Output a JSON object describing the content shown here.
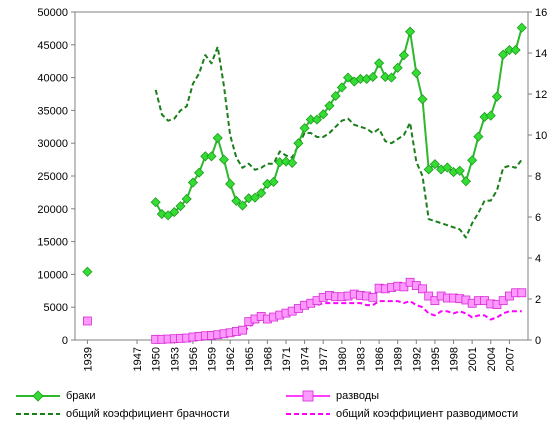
{
  "chart_data": {
    "type": "line",
    "x_ticks": [
      "1939",
      "1947",
      "1950",
      "1953",
      "1956",
      "1959",
      "1962",
      "1965",
      "1968",
      "1971",
      "1974",
      "1977",
      "1980",
      "1983",
      "1986",
      "1989",
      "1992",
      "1995",
      "1998",
      "2001",
      "2004",
      "2007"
    ],
    "y_left": {
      "min": 0,
      "max": 50000,
      "ticks": [
        "0",
        "5000",
        "10000",
        "15000",
        "20000",
        "25000",
        "30000",
        "35000",
        "40000",
        "45000",
        "50000"
      ]
    },
    "y_right": {
      "min": 0,
      "max": 16,
      "ticks": [
        "0",
        "2",
        "4",
        "6",
        "8",
        "10",
        "12",
        "14",
        "16"
      ]
    },
    "grid": false,
    "legend_position": "bottom",
    "series": [
      {
        "name": "браки",
        "axis": "left",
        "color": "#2db82d",
        "marker": "diamond",
        "style": "solid",
        "x": [
          1939,
          1950,
          1951,
          1952,
          1953,
          1954,
          1955,
          1956,
          1957,
          1958,
          1959,
          1960,
          1961,
          1962,
          1963,
          1964,
          1965,
          1966,
          1967,
          1968,
          1969,
          1970,
          1971,
          1972,
          1973,
          1974,
          1975,
          1976,
          1977,
          1978,
          1979,
          1980,
          1981,
          1982,
          1983,
          1984,
          1985,
          1986,
          1987,
          1988,
          1989,
          1990,
          1991,
          1992,
          1993,
          1994,
          1995,
          1996,
          1997,
          1998,
          1999,
          2000,
          2001,
          2002,
          2003,
          2004,
          2005,
          2006,
          2007,
          2008,
          2009
        ],
        "y": [
          10400,
          21000,
          19200,
          19000,
          19500,
          20400,
          21500,
          24000,
          25500,
          28000,
          28000,
          30800,
          27500,
          23800,
          21200,
          20500,
          21600,
          21700,
          22400,
          23800,
          24100,
          27100,
          27200,
          27000,
          30000,
          32300,
          33600,
          33600,
          34400,
          35700,
          37200,
          38500,
          40000,
          39400,
          39800,
          39800,
          40100,
          42200,
          40100,
          40000,
          41500,
          43400,
          47000,
          40700,
          36700,
          26000,
          26800,
          26000,
          26300,
          25600,
          25800,
          24200,
          27400,
          31000,
          34000,
          34200,
          37100,
          43500,
          44200,
          44200,
          47600
        ]
      },
      {
        "name": "разводы",
        "axis": "left",
        "color": "#ff3dff",
        "marker": "square",
        "style": "solid",
        "x": [
          1939,
          1950,
          1951,
          1952,
          1953,
          1954,
          1955,
          1956,
          1957,
          1958,
          1959,
          1960,
          1961,
          1962,
          1963,
          1964,
          1965,
          1966,
          1967,
          1968,
          1969,
          1970,
          1971,
          1972,
          1973,
          1974,
          1975,
          1976,
          1977,
          1978,
          1979,
          1980,
          1981,
          1982,
          1983,
          1984,
          1985,
          1986,
          1987,
          1988,
          1989,
          1990,
          1991,
          1992,
          1993,
          1994,
          1995,
          1996,
          1997,
          1998,
          1999,
          2000,
          2001,
          2002,
          2003,
          2004,
          2005,
          2006,
          2007,
          2008,
          2009
        ],
        "y": [
          2900,
          100,
          100,
          150,
          200,
          250,
          300,
          450,
          550,
          650,
          700,
          800,
          950,
          1100,
          1300,
          1500,
          2800,
          3200,
          3600,
          3200,
          3500,
          3800,
          4100,
          4400,
          4800,
          5300,
          5600,
          6000,
          6500,
          6800,
          6600,
          6600,
          6700,
          7000,
          6800,
          6700,
          6500,
          7900,
          7800,
          8000,
          8200,
          8100,
          8800,
          8300,
          7800,
          6700,
          6000,
          6700,
          6400,
          6400,
          6300,
          6100,
          5600,
          6000,
          6000,
          5500,
          5400,
          6000,
          6700,
          7200,
          7200
        ]
      },
      {
        "name": "общий коэффициент брачности",
        "axis": "right",
        "color": "#1a7f1a",
        "marker": "none",
        "style": "dashed",
        "x": [
          1950,
          1951,
          1952,
          1953,
          1954,
          1955,
          1956,
          1957,
          1958,
          1959,
          1960,
          1961,
          1962,
          1963,
          1964,
          1965,
          1966,
          1967,
          1968,
          1969,
          1970,
          1971,
          1972,
          1973,
          1974,
          1975,
          1976,
          1977,
          1978,
          1979,
          1980,
          1981,
          1982,
          1983,
          1984,
          1985,
          1986,
          1987,
          1988,
          1989,
          1990,
          1991,
          1992,
          1993,
          1994,
          1995,
          1996,
          1997,
          1998,
          1999,
          2000,
          2001,
          2002,
          2003,
          2004,
          2005,
          2006,
          2007,
          2008,
          2009
        ],
        "y": [
          12.2,
          11.0,
          10.7,
          10.8,
          11.2,
          11.4,
          12.5,
          13.0,
          13.9,
          13.5,
          14.3,
          12.4,
          10.0,
          8.9,
          8.4,
          8.6,
          8.3,
          8.4,
          8.6,
          8.6,
          9.2,
          9.0,
          8.9,
          9.5,
          10.1,
          10.1,
          9.9,
          9.9,
          10.1,
          10.4,
          10.7,
          10.8,
          10.5,
          10.4,
          10.3,
          10.1,
          10.3,
          9.7,
          9.6,
          9.8,
          10.0,
          10.6,
          8.7,
          8.0,
          5.9,
          5.8,
          5.7,
          5.6,
          5.5,
          5.4,
          5.0,
          5.7,
          6.2,
          6.8,
          6.8,
          7.3,
          8.4,
          8.5,
          8.4,
          8.8
        ]
      },
      {
        "name": "общий коэффициент разводимости",
        "axis": "right",
        "color": "#ff00ff",
        "marker": "none",
        "style": "dashed",
        "x": [
          1963,
          1964,
          1965,
          1966,
          1967,
          1968,
          1969,
          1970,
          1971,
          1972,
          1973,
          1974,
          1975,
          1976,
          1977,
          1978,
          1979,
          1980,
          1981,
          1982,
          1983,
          1984,
          1985,
          1986,
          1987,
          1988,
          1989,
          1990,
          1991,
          1992,
          1993,
          1994,
          1995,
          1996,
          1997,
          1998,
          1999,
          2000,
          2001,
          2002,
          2003,
          2004,
          2005,
          2006,
          2007,
          2008,
          2009
        ],
        "y": [
          0.3,
          0.4,
          0.6,
          0.9,
          1.0,
          1.1,
          1.1,
          1.2,
          1.3,
          1.4,
          1.5,
          1.6,
          1.7,
          1.7,
          1.8,
          1.8,
          1.8,
          1.8,
          1.8,
          1.8,
          1.8,
          1.7,
          1.7,
          1.9,
          1.9,
          1.9,
          1.9,
          1.8,
          1.9,
          1.7,
          1.6,
          1.3,
          1.2,
          1.4,
          1.4,
          1.3,
          1.4,
          1.3,
          1.1,
          1.2,
          1.2,
          1.0,
          1.1,
          1.3,
          1.4,
          1.4,
          1.4
        ]
      }
    ]
  }
}
